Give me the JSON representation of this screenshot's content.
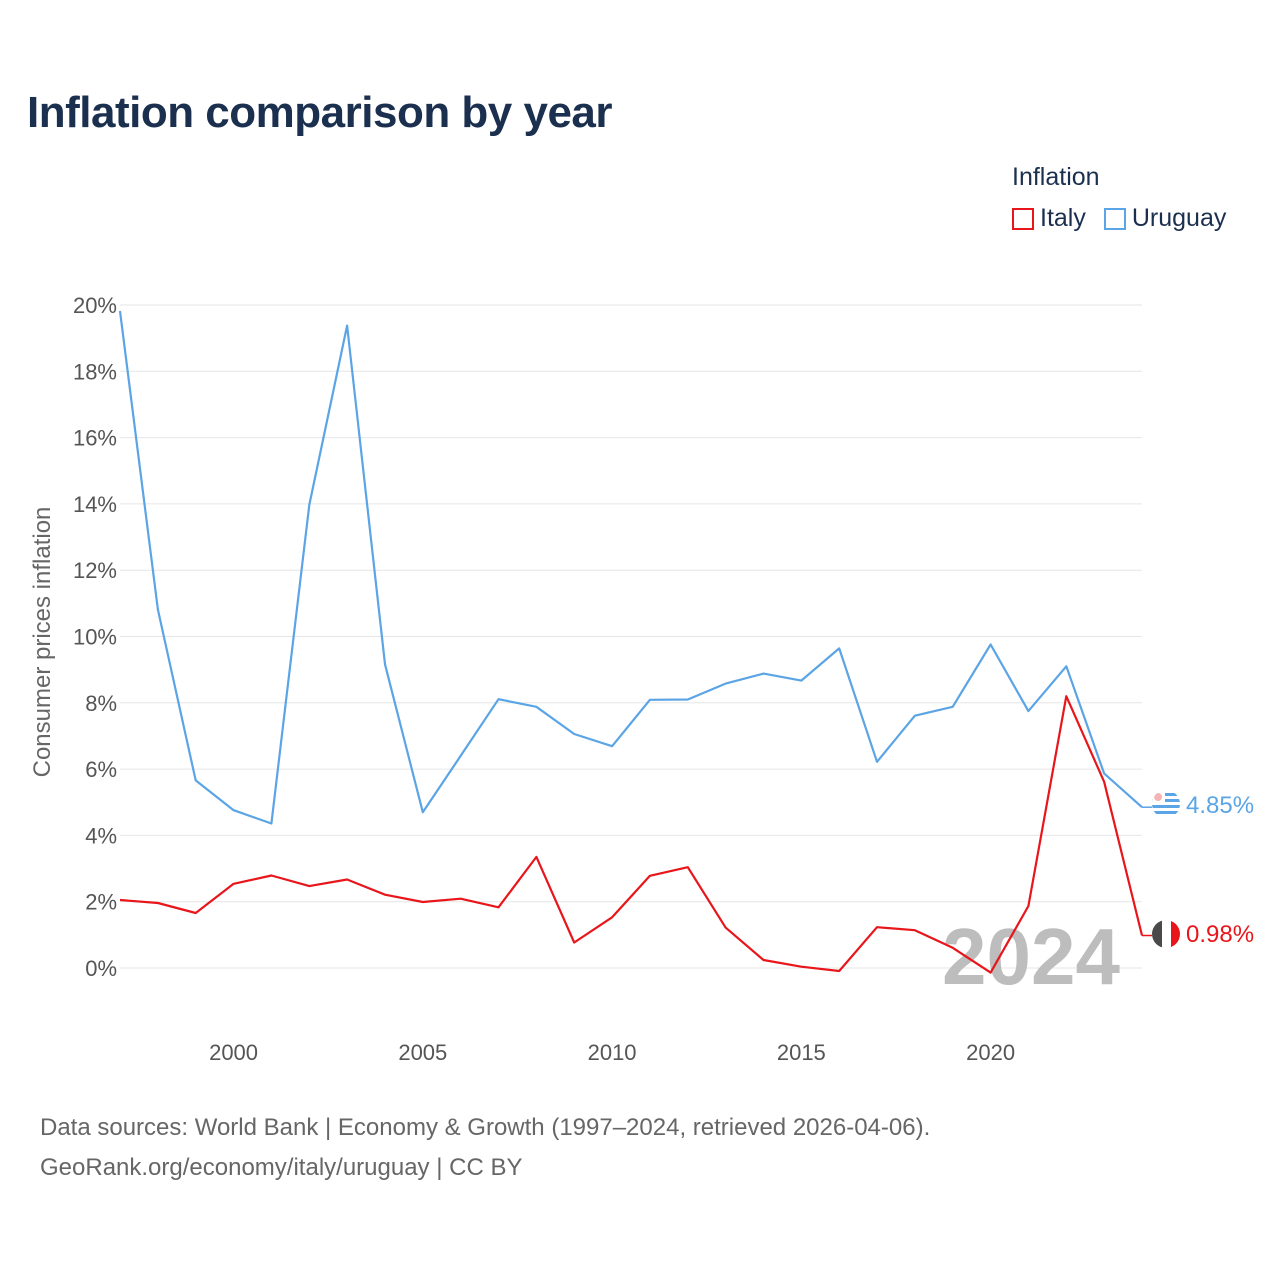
{
  "title": "Inflation comparison by year",
  "legend": {
    "title": "Inflation",
    "items": [
      {
        "label": "Italy",
        "color": "#e8161b"
      },
      {
        "label": "Uruguay",
        "color": "#5ba4e5"
      }
    ]
  },
  "footer": {
    "line1": "Data sources: World Bank | Economy & Growth (1997–2024, retrieved 2026-04-06).",
    "line2": "GeoRank.org/economy/italy/uruguay | CC BY"
  },
  "chart_data": {
    "type": "line",
    "title": "Inflation comparison by year",
    "xlabel": "",
    "ylabel": "Consumer prices inflation",
    "x": [
      1997,
      1998,
      1999,
      2000,
      2001,
      2002,
      2003,
      2004,
      2005,
      2006,
      2007,
      2008,
      2009,
      2010,
      2011,
      2012,
      2013,
      2014,
      2015,
      2016,
      2017,
      2018,
      2019,
      2020,
      2021,
      2022,
      2023,
      2024
    ],
    "xlim": [
      1997,
      2024
    ],
    "ylim": [
      -2,
      20
    ],
    "x_ticks": [
      2000,
      2005,
      2010,
      2015,
      2020
    ],
    "y_ticks": [
      0,
      2,
      4,
      6,
      8,
      10,
      12,
      14,
      16,
      18,
      20
    ],
    "y_tick_labels": [
      "0%",
      "2%",
      "4%",
      "6%",
      "8%",
      "10%",
      "12%",
      "14%",
      "16%",
      "18%",
      "20%"
    ],
    "grid": true,
    "current_year": "2024",
    "series": [
      {
        "name": "Italy",
        "color": "#e8161b",
        "values": [
          2.05,
          1.96,
          1.66,
          2.54,
          2.79,
          2.47,
          2.67,
          2.21,
          1.99,
          2.09,
          1.83,
          3.35,
          0.77,
          1.53,
          2.78,
          3.04,
          1.22,
          0.24,
          0.04,
          -0.09,
          1.23,
          1.14,
          0.61,
          -0.14,
          1.87,
          8.2,
          5.62,
          0.98
        ],
        "end_label": "0.98%"
      },
      {
        "name": "Uruguay",
        "color": "#5ba4e5",
        "values": [
          19.82,
          10.81,
          5.66,
          4.76,
          4.36,
          13.97,
          19.38,
          9.16,
          4.7,
          6.4,
          8.11,
          7.88,
          7.06,
          6.69,
          8.09,
          8.1,
          8.58,
          8.88,
          8.67,
          9.64,
          6.22,
          7.61,
          7.88,
          9.76,
          7.75,
          9.1,
          5.87,
          4.85
        ],
        "end_label": "4.85%"
      }
    ]
  }
}
